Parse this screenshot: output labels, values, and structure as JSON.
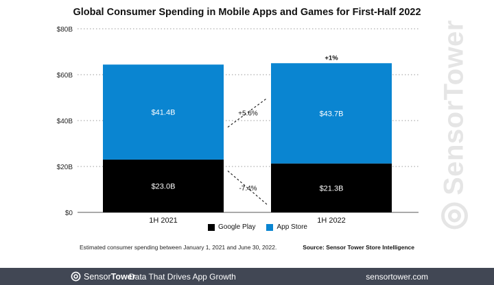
{
  "chart_data": {
    "type": "bar",
    "stacked": true,
    "title": "Global Consumer Spending in Mobile Apps and Games for First-Half 2022",
    "categories": [
      "1H 2021",
      "1H 2022"
    ],
    "series": [
      {
        "name": "Google Play",
        "values": [
          23.0,
          21.3
        ],
        "labels": [
          "$23.0B",
          "$21.3B"
        ],
        "color": "#000000"
      },
      {
        "name": "App Store",
        "values": [
          41.4,
          43.7
        ],
        "labels": [
          "$41.4B",
          "$43.7B"
        ],
        "color": "#0a85d1"
      }
    ],
    "y_ticks": [
      "$0",
      "$20B",
      "$40B",
      "$60B",
      "$80B"
    ],
    "y_tick_values": [
      0,
      20,
      40,
      60,
      80
    ],
    "ylim": [
      0,
      80
    ],
    "grid": "horizontal dotted",
    "legend": "bottom-center",
    "annotations": {
      "total_change": "+1%",
      "app_store_change": "+5.6%",
      "google_play_change": "-7.4%"
    }
  },
  "note": "Estimated consumer spending between January 1, 2021 and June 30, 2022.",
  "source": "Source: Sensor Tower Store Intelligence",
  "watermark": "SensorTower",
  "footer": {
    "brand_light": "Sensor",
    "brand_bold": "Tower",
    "tagline": "Data That Drives App Growth",
    "url": "sensortower.com",
    "background": "#414754"
  }
}
